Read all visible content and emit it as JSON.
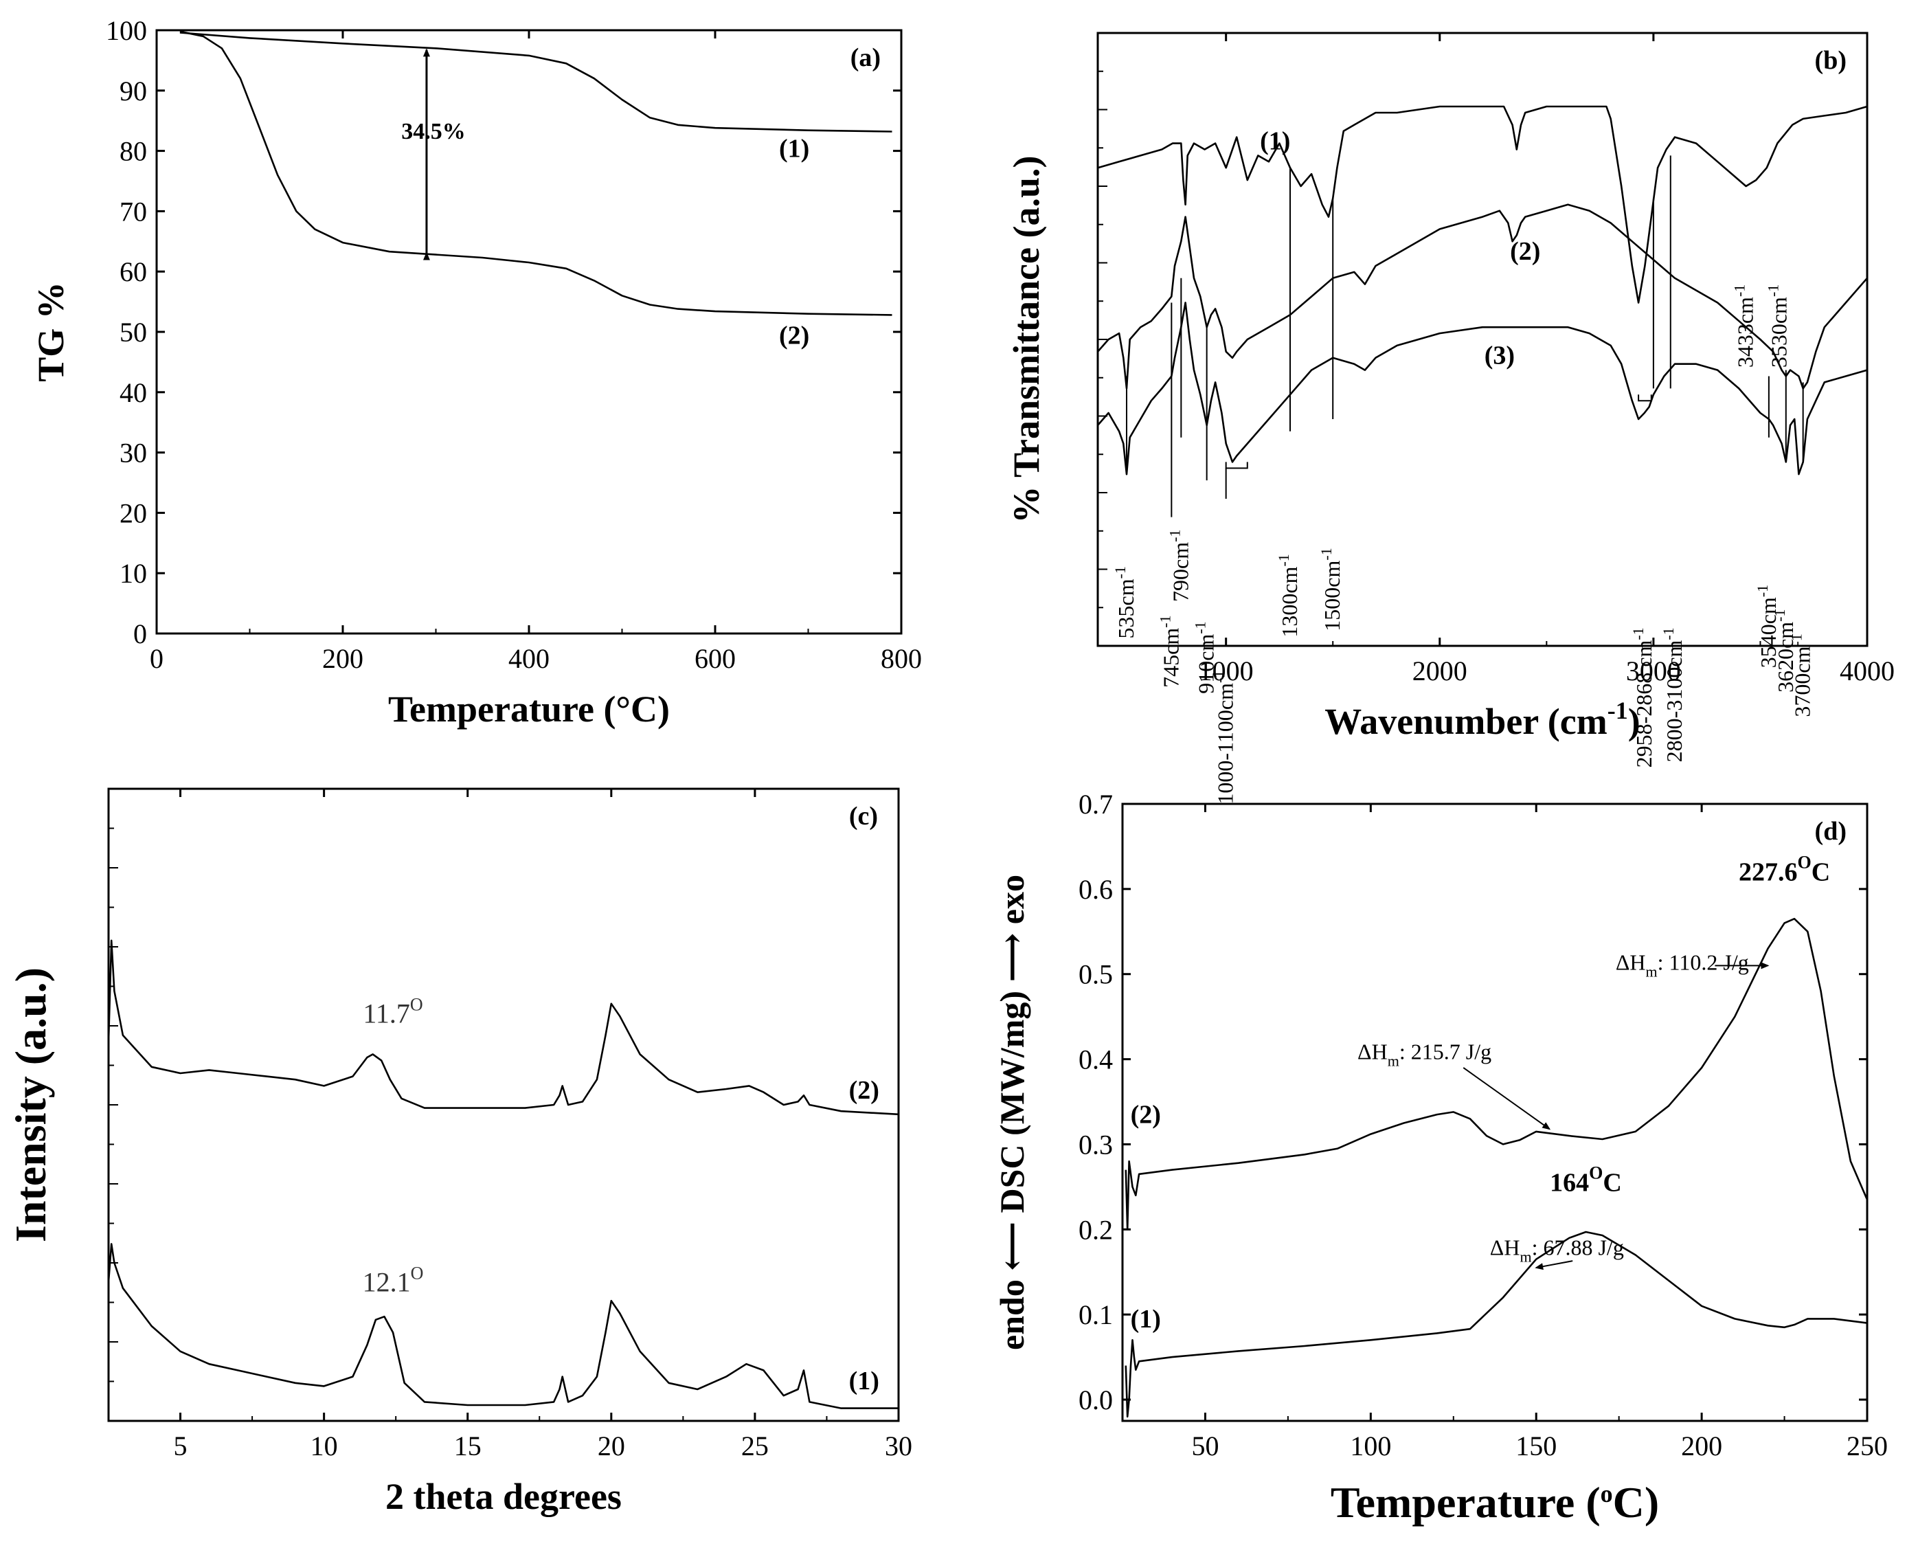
{
  "chart_data": [
    {
      "id": "a",
      "type": "line",
      "panel_label": "(a)",
      "xlabel": "Temperature (°C)",
      "ylabel": "TG %",
      "xlim": [
        0,
        800
      ],
      "ylim": [
        0,
        100
      ],
      "xticks": [
        0,
        200,
        400,
        600,
        800
      ],
      "yticks": [
        0,
        10,
        20,
        30,
        40,
        50,
        60,
        70,
        80,
        90,
        100
      ],
      "series": [
        {
          "name": "(1)",
          "x": [
            25,
            100,
            200,
            300,
            400,
            440,
            470,
            500,
            530,
            560,
            600,
            700,
            790
          ],
          "y": [
            99.6,
            98.7,
            97.8,
            97.0,
            95.8,
            94.5,
            92.0,
            88.5,
            85.5,
            84.3,
            83.8,
            83.4,
            83.2
          ]
        },
        {
          "name": "(2)",
          "x": [
            25,
            50,
            70,
            90,
            110,
            130,
            150,
            170,
            200,
            250,
            300,
            350,
            400,
            440,
            470,
            500,
            530,
            560,
            600,
            700,
            790
          ],
          "y": [
            99.8,
            99.0,
            97.0,
            92.0,
            84.0,
            76.0,
            70.0,
            67.0,
            64.8,
            63.3,
            62.8,
            62.3,
            61.5,
            60.5,
            58.5,
            56.0,
            54.5,
            53.8,
            53.4,
            53.0,
            52.8
          ]
        }
      ],
      "annotations": {
        "loss_label": "34.5%",
        "arrow_x": 290,
        "arrow_y_top": 97.0,
        "arrow_y_bottom": 62.8
      },
      "curve_labels": [
        {
          "text": "(1)",
          "x": 685,
          "y": 79
        },
        {
          "text": "(2)",
          "x": 685,
          "y": 48
        }
      ]
    },
    {
      "id": "b",
      "type": "line",
      "panel_label": "(b)",
      "xlabel": "Wavenumber (cm",
      "xlabel_sup": "-1",
      "xlabel_end": ")",
      "ylabel": "% Transmittance (a.u.)",
      "xlim": [
        400,
        4000
      ],
      "ylim": [
        0,
        100
      ],
      "xticks": [
        1000,
        2000,
        3000,
        4000
      ],
      "series": [
        {
          "name": "(1)",
          "x": [
            400,
            500,
            600,
            700,
            750,
            790,
            800,
            810,
            820,
            850,
            900,
            950,
            1000,
            1050,
            1100,
            1150,
            1200,
            1250,
            1300,
            1350,
            1400,
            1450,
            1480,
            1500,
            1520,
            1550,
            1600,
            1700,
            1800,
            1900,
            2000,
            2100,
            2200,
            2300,
            2340,
            2360,
            2380,
            2400,
            2500,
            2600,
            2700,
            2780,
            2800,
            2850,
            2900,
            2930,
            2960,
            2990,
            3020,
            3060,
            3100,
            3200,
            3300,
            3400,
            3433,
            3480,
            3530,
            3580,
            3650,
            3700,
            3800,
            3900,
            4000
          ],
          "y": [
            78,
            79,
            80,
            81,
            82,
            82,
            76,
            72,
            80,
            82,
            81,
            82,
            78,
            83,
            76,
            80,
            79,
            82,
            78,
            75,
            77,
            72,
            70,
            73,
            78,
            84,
            85,
            87,
            87,
            87.5,
            88,
            88,
            88,
            88,
            85,
            81,
            85,
            87,
            88,
            88,
            88,
            88,
            86,
            75,
            62,
            56,
            62,
            70,
            78,
            81,
            83,
            82,
            79,
            76,
            75,
            76,
            78,
            82,
            85,
            86,
            86.5,
            87,
            88
          ]
        },
        {
          "name": "(2)",
          "x": [
            400,
            450,
            500,
            520,
            535,
            550,
            600,
            650,
            700,
            745,
            760,
            790,
            810,
            830,
            850,
            880,
            910,
            930,
            950,
            980,
            1000,
            1030,
            1050,
            1100,
            1200,
            1300,
            1400,
            1500,
            1600,
            1650,
            1700,
            1800,
            1900,
            2000,
            2100,
            2200,
            2280,
            2320,
            2340,
            2360,
            2380,
            2400,
            2500,
            2600,
            2700,
            2800,
            2900,
            3000,
            3100,
            3200,
            3300,
            3400,
            3500,
            3530,
            3560,
            3600,
            3620,
            3640,
            3680,
            3700,
            3720,
            3760,
            3800,
            3900,
            4000
          ],
          "y": [
            48,
            50,
            51,
            47,
            42,
            50,
            52,
            53,
            55,
            57,
            62,
            66,
            70,
            65,
            60,
            57,
            52,
            54,
            55,
            52,
            48,
            47,
            48,
            50,
            52,
            54,
            57,
            60,
            61,
            59,
            62,
            64,
            66,
            68,
            69,
            70,
            71,
            69,
            66,
            67,
            69,
            70,
            71,
            72,
            71,
            69,
            66,
            63,
            60,
            58,
            56,
            53,
            50,
            49,
            48,
            45,
            44,
            45,
            44,
            42,
            43,
            48,
            52,
            56,
            60
          ]
        },
        {
          "name": "(3)",
          "x": [
            400,
            450,
            500,
            520,
            535,
            550,
            600,
            650,
            700,
            745,
            760,
            790,
            810,
            830,
            850,
            880,
            910,
            930,
            950,
            980,
            1000,
            1030,
            1050,
            1100,
            1200,
            1300,
            1400,
            1500,
            1600,
            1650,
            1700,
            1800,
            1900,
            2000,
            2200,
            2400,
            2600,
            2700,
            2800,
            2850,
            2900,
            2930,
            2958,
            2980,
            3000,
            3050,
            3100,
            3200,
            3300,
            3400,
            3500,
            3540,
            3560,
            3600,
            3620,
            3640,
            3660,
            3680,
            3700,
            3720,
            3760,
            3800,
            3900,
            4000
          ],
          "y": [
            36,
            38,
            35,
            33,
            28,
            34,
            37,
            40,
            42,
            44,
            47,
            52,
            56,
            50,
            45,
            41,
            36,
            40,
            43,
            38,
            33,
            30,
            31,
            33,
            37,
            41,
            45,
            47,
            46,
            45,
            47,
            49,
            50,
            51,
            52,
            52,
            52,
            51,
            49,
            46,
            40,
            37,
            38,
            39,
            41,
            44,
            46,
            46,
            45,
            42,
            38,
            37,
            36,
            33,
            30,
            36,
            37,
            28,
            30,
            37,
            40,
            43,
            44,
            45
          ]
        }
      ],
      "curve_labels": [
        {
          "text": "(1)",
          "x": 1230,
          "y": 81
        },
        {
          "text": "(2)",
          "x": 2400,
          "y": 63
        },
        {
          "text": "(3)",
          "x": 2280,
          "y": 46
        }
      ],
      "peak_labels": [
        {
          "text": "535cm",
          "sup": "-1",
          "x": 535,
          "y": 13,
          "line_top": 44,
          "line_bot": 28
        },
        {
          "text": "745cm",
          "sup": "-1",
          "x": 745,
          "y": 5,
          "line_top": 56,
          "line_bot": 21
        },
        {
          "text": "790cm",
          "sup": "-1",
          "x": 790,
          "y": 19,
          "line_top": 60,
          "line_bot": 34
        },
        {
          "text": "910cm",
          "sup": "-1",
          "x": 910,
          "y": 4,
          "line_top": 52,
          "line_bot": 27
        },
        {
          "text": "1000-1100cm",
          "sup": "-1",
          "x": 1000,
          "y": -4,
          "line_top": 0,
          "line_bot": 0
        },
        {
          "text": "1300cm",
          "sup": "-1",
          "x": 1300,
          "y": 15,
          "line_top": 78,
          "line_bot": 35
        },
        {
          "text": "1500cm",
          "sup": "-1",
          "x": 1500,
          "y": 16,
          "line_top": 73,
          "line_bot": 37
        },
        {
          "text": "2958-2868 cm",
          "sup": "-1",
          "x": 2958,
          "y": 3,
          "line_top": 0,
          "line_bot": 0
        },
        {
          "text": "2800-3100cm",
          "sup": "-1",
          "x": 3100,
          "y": 3,
          "line_top": 0,
          "line_bot": 0
        },
        {
          "text": "3433cm",
          "sup": "-1",
          "x": 3433,
          "y": 59,
          "line_top": 0,
          "line_bot": 0
        },
        {
          "text": "3530cm",
          "sup": "-1",
          "x": 3590,
          "y": 59,
          "line_top": 0,
          "line_bot": 0
        },
        {
          "text": "3540cm",
          "sup": "-1",
          "x": 3540,
          "y": 10,
          "line_top": 44,
          "line_bot": 34
        },
        {
          "text": "3620cm",
          "sup": "-1",
          "x": 3620,
          "y": 6,
          "line_top": 45,
          "line_bot": 30
        },
        {
          "text": "3700cm",
          "sup": "-1",
          "x": 3700,
          "y": 2,
          "line_top": 43,
          "line_bot": 30
        }
      ]
    },
    {
      "id": "c",
      "type": "line",
      "panel_label": "(c)",
      "xlabel": "2 theta degrees",
      "ylabel": "Intensity (a.u.)",
      "xlim": [
        2.5,
        30
      ],
      "ylim": [
        0,
        100
      ],
      "xticks": [
        5,
        10,
        15,
        20,
        25,
        30
      ],
      "series": [
        {
          "name": "(1)",
          "x": [
            2.5,
            2.6,
            2.7,
            3,
            4,
            5,
            6,
            7,
            8,
            9,
            10,
            11,
            11.5,
            11.8,
            12.1,
            12.4,
            12.8,
            13.5,
            15,
            17,
            18,
            18.2,
            18.3,
            18.5,
            19,
            19.5,
            19.8,
            20,
            20.3,
            21,
            22,
            23,
            24,
            24.7,
            25.3,
            26,
            26.5,
            26.7,
            26.9,
            28,
            30
          ],
          "y": [
            22,
            28,
            25,
            21,
            15,
            11,
            9,
            8,
            7,
            6,
            5.5,
            7,
            12,
            16,
            16.5,
            14,
            6,
            3,
            2.5,
            2.5,
            3,
            5,
            7,
            3,
            4,
            7,
            14,
            19,
            17,
            11,
            6,
            5,
            7,
            9,
            8,
            4,
            5,
            8,
            3,
            2,
            2
          ]
        },
        {
          "name": "(2)",
          "x": [
            2.5,
            2.6,
            2.7,
            3,
            4,
            5,
            6,
            7,
            8,
            9,
            10,
            11,
            11.5,
            11.7,
            12,
            12.3,
            12.7,
            13.5,
            15,
            17,
            18,
            18.2,
            18.3,
            18.5,
            19,
            19.5,
            19.8,
            20,
            20.3,
            21,
            22,
            23,
            24,
            24.8,
            25.3,
            26,
            26.5,
            26.7,
            26.9,
            28,
            30
          ],
          "y": [
            60,
            76,
            68,
            61,
            56,
            55,
            55.5,
            55,
            54.5,
            54,
            53,
            54.5,
            57.5,
            58,
            57,
            54,
            51,
            49.5,
            49.5,
            49.5,
            50,
            51.5,
            53,
            50,
            50.5,
            54,
            61,
            66,
            64,
            58,
            54,
            52,
            52.5,
            53,
            52,
            50,
            50.5,
            51.5,
            50,
            49,
            48.5
          ]
        }
      ],
      "curve_labels": [
        {
          "text": "(2)",
          "x": 28.8,
          "y": 51
        },
        {
          "text": "(1)",
          "x": 28.8,
          "y": 5
        }
      ],
      "peak_labels": [
        {
          "text": "11.7",
          "sup": "O",
          "x": 12.4,
          "y": 63
        },
        {
          "text": "12.1",
          "sup": "O",
          "x": 12.4,
          "y": 20.5
        }
      ]
    },
    {
      "id": "d",
      "type": "line",
      "panel_label": "(d)",
      "xlabel": "Temperature (",
      "xlabel_sup": "o",
      "xlabel_end": "C)",
      "ylabel": "endo ⟵ DSC (MW/mg) ⟶ exo",
      "xlim": [
        25,
        250
      ],
      "ylim": [
        -0.025,
        0.7
      ],
      "xticks": [
        50,
        100,
        150,
        200,
        250
      ],
      "yticks": [
        0.0,
        0.1,
        0.2,
        0.3,
        0.4,
        0.5,
        0.6,
        0.7
      ],
      "series": [
        {
          "name": "(1)",
          "x": [
            26,
            26.5,
            27,
            27.5,
            28,
            28.5,
            29,
            30,
            40,
            60,
            80,
            100,
            120,
            130,
            140,
            150,
            160,
            165,
            170,
            180,
            190,
            200,
            210,
            220,
            225,
            228,
            232,
            240,
            250
          ],
          "y": [
            0.04,
            -0.02,
            0.0,
            0.04,
            0.07,
            0.05,
            0.035,
            0.045,
            0.05,
            0.057,
            0.063,
            0.07,
            0.078,
            0.083,
            0.12,
            0.165,
            0.19,
            0.197,
            0.193,
            0.17,
            0.14,
            0.11,
            0.095,
            0.087,
            0.085,
            0.088,
            0.095,
            0.095,
            0.09
          ]
        },
        {
          "name": "(2)",
          "x": [
            26,
            26.5,
            27,
            28,
            29,
            30,
            40,
            60,
            80,
            90,
            100,
            110,
            120,
            125,
            130,
            135,
            140,
            145,
            150,
            160,
            170,
            180,
            190,
            200,
            210,
            220,
            225,
            228,
            232,
            236,
            240,
            245,
            250
          ],
          "y": [
            0.27,
            0.2,
            0.28,
            0.25,
            0.24,
            0.265,
            0.27,
            0.278,
            0.288,
            0.295,
            0.312,
            0.325,
            0.335,
            0.338,
            0.33,
            0.31,
            0.3,
            0.305,
            0.315,
            0.31,
            0.306,
            0.315,
            0.345,
            0.39,
            0.45,
            0.53,
            0.56,
            0.565,
            0.55,
            0.48,
            0.38,
            0.28,
            0.235
          ]
        }
      ],
      "curve_labels": [
        {
          "text": "(2)",
          "x": 32,
          "y": 0.325
        },
        {
          "text": "(1)",
          "x": 32,
          "y": 0.085
        }
      ],
      "peak_labels": [
        {
          "text": "227.6",
          "sup": "O",
          "end": "C",
          "x": 225,
          "y": 0.61
        },
        {
          "text": "164",
          "sup": "O",
          "end": "C",
          "x": 165,
          "y": 0.245
        }
      ],
      "enthalpy_labels": [
        {
          "pre": "ΔH",
          "sub": "m",
          "text": ": 110.2 J/g",
          "x": 174,
          "y": 0.505,
          "ax": 204,
          "ay": 0.51,
          "bx": 220,
          "by": 0.51
        },
        {
          "pre": "ΔH",
          "sub": "m",
          "text": ": 215.7 J/g",
          "x": 96,
          "y": 0.4,
          "ax": 128,
          "ay": 0.39,
          "bx": 154,
          "by": 0.318
        },
        {
          "pre": "ΔH",
          "sub": "m",
          "text": ": 67.88 J/g",
          "x": 136,
          "y": 0.17,
          "ax": 161,
          "ay": 0.163,
          "bx": 150,
          "by": 0.155
        }
      ]
    }
  ]
}
